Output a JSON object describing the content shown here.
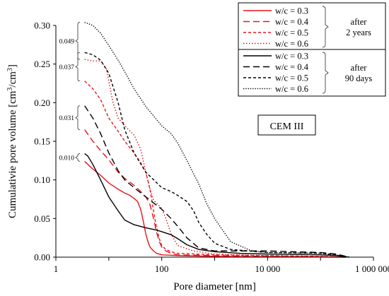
{
  "chart_data": {
    "type": "line",
    "xscale": "log",
    "xlim": [
      1,
      1000000
    ],
    "ylim": [
      0,
      0.3
    ],
    "xlabel": "Pore diameter [nm]",
    "ylabel": "Cumulativie pore volume  [cm³/cm³]",
    "x_ticks": [
      {
        "value": 1,
        "label": "1"
      },
      {
        "value": 100,
        "label": "100"
      },
      {
        "value": 10000,
        "label": "10 000"
      },
      {
        "value": 1000000,
        "label": "1 000 000"
      }
    ],
    "y_ticks": [
      {
        "value": 0,
        "label": "0.00"
      },
      {
        "value": 0.05,
        "label": "0.05"
      },
      {
        "value": 0.1,
        "label": "0.10"
      },
      {
        "value": 0.15,
        "label": "0.15"
      },
      {
        "value": 0.2,
        "label": "0.20"
      },
      {
        "value": 0.25,
        "label": "0.25"
      },
      {
        "value": 0.3,
        "label": "0.30"
      }
    ],
    "text_box": "CEM III",
    "legend_groups": [
      {
        "label_lines": [
          "after",
          "2 years"
        ]
      },
      {
        "label_lines": [
          "after",
          "90 days"
        ]
      }
    ],
    "annotations": [
      {
        "label": "0.049",
        "y_low": 0.256,
        "y_high": 0.304
      },
      {
        "label": "0.037",
        "y_low": 0.228,
        "y_high": 0.265
      },
      {
        "label": "0.031",
        "y_low": 0.165,
        "y_high": 0.196
      },
      {
        "label": "0.010",
        "y_low": 0.124,
        "y_high": 0.134
      }
    ],
    "series": [
      {
        "name": "w/c = 0.3",
        "group": 0,
        "color": "#e8141b",
        "dash": "solid",
        "points": [
          [
            3.5,
            0.124
          ],
          [
            5,
            0.114
          ],
          [
            7,
            0.106
          ],
          [
            10,
            0.096
          ],
          [
            15,
            0.088
          ],
          [
            20,
            0.083
          ],
          [
            25,
            0.08
          ],
          [
            30,
            0.076
          ],
          [
            35,
            0.072
          ],
          [
            40,
            0.062
          ],
          [
            45,
            0.046
          ],
          [
            50,
            0.03
          ],
          [
            55,
            0.02
          ],
          [
            60,
            0.013
          ],
          [
            70,
            0.008
          ],
          [
            80,
            0.005
          ],
          [
            100,
            0.003
          ],
          [
            200,
            0.002
          ],
          [
            1000,
            0.001
          ],
          [
            10000,
            0.0005
          ],
          [
            100000,
            0.0002
          ],
          [
            300000,
            0.0
          ]
        ]
      },
      {
        "name": "w/c = 0.4",
        "group": 0,
        "color": "#e8141b",
        "dash": "9,5",
        "points": [
          [
            3.5,
            0.165
          ],
          [
            5,
            0.15
          ],
          [
            7,
            0.138
          ],
          [
            10,
            0.126
          ],
          [
            15,
            0.11
          ],
          [
            20,
            0.102
          ],
          [
            30,
            0.093
          ],
          [
            40,
            0.085
          ],
          [
            50,
            0.078
          ],
          [
            60,
            0.068
          ],
          [
            70,
            0.05
          ],
          [
            80,
            0.032
          ],
          [
            90,
            0.02
          ],
          [
            100,
            0.013
          ],
          [
            120,
            0.008
          ],
          [
            150,
            0.005
          ],
          [
            200,
            0.003
          ],
          [
            1000,
            0.002
          ],
          [
            10000,
            0.001
          ],
          [
            100000,
            0.0005
          ],
          [
            300000,
            0.0
          ]
        ]
      },
      {
        "name": "w/c = 0.5",
        "group": 0,
        "color": "#e8141b",
        "dash": "4,3",
        "points": [
          [
            3.5,
            0.228
          ],
          [
            5,
            0.218
          ],
          [
            7,
            0.204
          ],
          [
            10,
            0.18
          ],
          [
            15,
            0.163
          ],
          [
            20,
            0.15
          ],
          [
            30,
            0.135
          ],
          [
            40,
            0.122
          ],
          [
            50,
            0.11
          ],
          [
            60,
            0.088
          ],
          [
            70,
            0.06
          ],
          [
            80,
            0.038
          ],
          [
            90,
            0.024
          ],
          [
            100,
            0.015
          ],
          [
            120,
            0.01
          ],
          [
            150,
            0.007
          ],
          [
            200,
            0.005
          ],
          [
            1000,
            0.003
          ],
          [
            10000,
            0.002
          ],
          [
            100000,
            0.001
          ],
          [
            300000,
            0.0
          ]
        ]
      },
      {
        "name": "w/c = 0.6",
        "group": 0,
        "color": "#e8141b",
        "dash": "1.5,2.5",
        "points": [
          [
            3.5,
            0.256
          ],
          [
            5,
            0.254
          ],
          [
            7,
            0.254
          ],
          [
            9,
            0.244
          ],
          [
            10,
            0.228
          ],
          [
            12,
            0.2
          ],
          [
            15,
            0.18
          ],
          [
            20,
            0.17
          ],
          [
            30,
            0.158
          ],
          [
            40,
            0.14
          ],
          [
            50,
            0.11
          ],
          [
            60,
            0.088
          ],
          [
            70,
            0.074
          ],
          [
            100,
            0.063
          ],
          [
            120,
            0.05
          ],
          [
            150,
            0.03
          ],
          [
            200,
            0.015
          ],
          [
            400,
            0.008
          ],
          [
            1000,
            0.004
          ],
          [
            10000,
            0.002
          ],
          [
            100000,
            0.001
          ],
          [
            300000,
            0.0
          ]
        ]
      },
      {
        "name": "w/c = 0.3",
        "group": 1,
        "color": "#000000",
        "dash": "solid",
        "points": [
          [
            3.5,
            0.134
          ],
          [
            4,
            0.131
          ],
          [
            5,
            0.12
          ],
          [
            7,
            0.1
          ],
          [
            10,
            0.078
          ],
          [
            15,
            0.06
          ],
          [
            20,
            0.048
          ],
          [
            30,
            0.042
          ],
          [
            50,
            0.038
          ],
          [
            80,
            0.035
          ],
          [
            100,
            0.033
          ],
          [
            150,
            0.029
          ],
          [
            200,
            0.024
          ],
          [
            300,
            0.016
          ],
          [
            500,
            0.01
          ],
          [
            1000,
            0.007
          ],
          [
            3000,
            0.005
          ],
          [
            10000,
            0.004
          ],
          [
            100000,
            0.003
          ],
          [
            200000,
            0.002
          ],
          [
            350000,
            0.0
          ]
        ]
      },
      {
        "name": "w/c = 0.4",
        "group": 1,
        "color": "#000000",
        "dash": "9,5",
        "points": [
          [
            3.5,
            0.196
          ],
          [
            5,
            0.18
          ],
          [
            7,
            0.16
          ],
          [
            10,
            0.135
          ],
          [
            15,
            0.112
          ],
          [
            20,
            0.1
          ],
          [
            30,
            0.09
          ],
          [
            50,
            0.078
          ],
          [
            100,
            0.062
          ],
          [
            150,
            0.05
          ],
          [
            200,
            0.04
          ],
          [
            300,
            0.025
          ],
          [
            500,
            0.012
          ],
          [
            1000,
            0.008
          ],
          [
            10000,
            0.008
          ],
          [
            100000,
            0.006
          ],
          [
            200000,
            0.004
          ],
          [
            350000,
            0.0
          ]
        ]
      },
      {
        "name": "w/c = 0.5",
        "group": 1,
        "color": "#000000",
        "dash": "4,3",
        "points": [
          [
            3.5,
            0.265
          ],
          [
            5,
            0.262
          ],
          [
            7,
            0.255
          ],
          [
            10,
            0.238
          ],
          [
            15,
            0.2
          ],
          [
            20,
            0.165
          ],
          [
            30,
            0.135
          ],
          [
            50,
            0.11
          ],
          [
            100,
            0.09
          ],
          [
            150,
            0.085
          ],
          [
            200,
            0.08
          ],
          [
            300,
            0.072
          ],
          [
            400,
            0.06
          ],
          [
            500,
            0.045
          ],
          [
            700,
            0.03
          ],
          [
            1000,
            0.018
          ],
          [
            2000,
            0.01
          ],
          [
            10000,
            0.006
          ],
          [
            100000,
            0.005
          ],
          [
            200000,
            0.003
          ],
          [
            300000,
            0.0
          ]
        ]
      },
      {
        "name": "w/c = 0.6",
        "group": 1,
        "color": "#000000",
        "dash": "1.3,2",
        "points": [
          [
            3.5,
            0.304
          ],
          [
            5,
            0.3
          ],
          [
            7,
            0.29
          ],
          [
            10,
            0.274
          ],
          [
            15,
            0.255
          ],
          [
            20,
            0.24
          ],
          [
            30,
            0.218
          ],
          [
            50,
            0.195
          ],
          [
            100,
            0.17
          ],
          [
            150,
            0.16
          ],
          [
            200,
            0.148
          ],
          [
            300,
            0.125
          ],
          [
            400,
            0.108
          ],
          [
            500,
            0.095
          ],
          [
            700,
            0.07
          ],
          [
            1000,
            0.05
          ],
          [
            2000,
            0.02
          ],
          [
            5000,
            0.008
          ],
          [
            10000,
            0.006
          ],
          [
            100000,
            0.005
          ],
          [
            200000,
            0.003
          ],
          [
            300000,
            0.0
          ]
        ]
      }
    ]
  }
}
